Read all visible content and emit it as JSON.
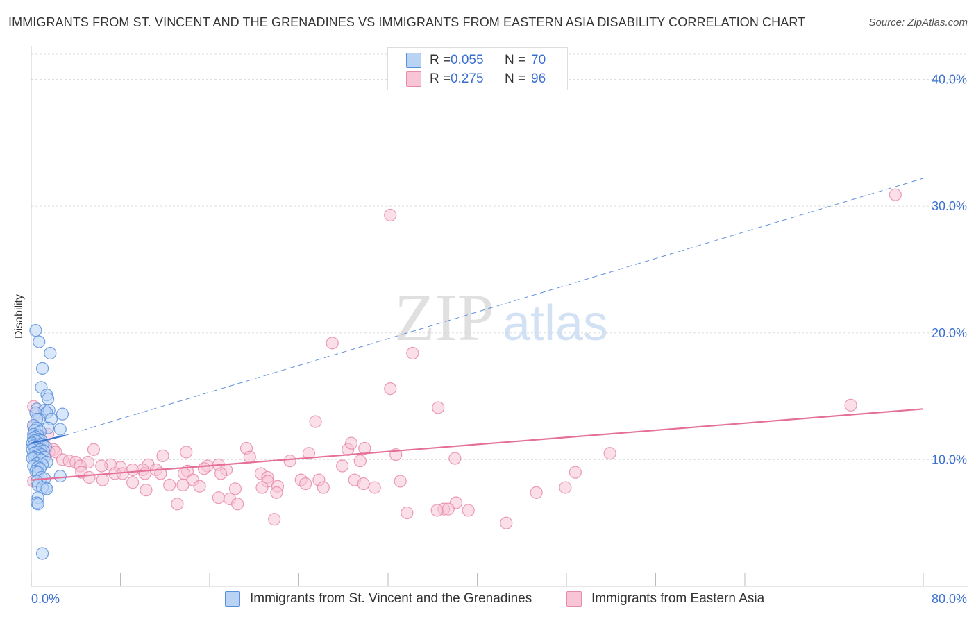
{
  "header": {
    "title": "IMMIGRANTS FROM ST. VINCENT AND THE GRENADINES VS IMMIGRANTS FROM EASTERN ASIA DISABILITY CORRELATION CHART",
    "source": "Source: ZipAtlas.com"
  },
  "watermark": {
    "zip": "ZIP",
    "atlas": "atlas"
  },
  "legend": {
    "rows": [
      {
        "r_label": "R =",
        "r_value": "0.055",
        "n_label": "N =",
        "n_value": "70"
      },
      {
        "r_label": "R =",
        "r_value": "0.275",
        "n_label": "N =",
        "n_value": "96"
      }
    ]
  },
  "colors": {
    "blue_fill": "#b9d3f5",
    "blue_stroke": "#5b8fd9",
    "blue_line": "#3a74d2",
    "pink_fill": "#f7c5d5",
    "pink_stroke": "#e88aaa",
    "pink_line": "#e4709a",
    "tick_label": "#3a6fd1",
    "grid": "#dddddd"
  },
  "chart_data": {
    "type": "scatter",
    "title": "IMMIGRANTS FROM ST. VINCENT AND THE GRENADINES VS IMMIGRANTS FROM EASTERN ASIA DISABILITY CORRELATION CHART",
    "xlabel": "",
    "ylabel": "Disability",
    "xlim": [
      0,
      80
    ],
    "ylim": [
      0,
      42
    ],
    "x_tick_labels": [
      {
        "value": 0,
        "label": "0.0%"
      },
      {
        "value": 80,
        "label": "80.0%"
      }
    ],
    "y_ticks": [
      {
        "value": 10,
        "label": "10.0%"
      },
      {
        "value": 20,
        "label": "20.0%"
      },
      {
        "value": 30,
        "label": "30.0%"
      },
      {
        "value": 40,
        "label": "40.0%"
      }
    ],
    "x_minor_ticks": [
      0,
      8,
      16,
      24,
      32,
      40,
      48,
      56,
      64,
      72,
      80
    ],
    "grid": true,
    "legend_position": "top-center",
    "series": [
      {
        "name": "Immigrants from St. Vincent and the Grenadines",
        "color": "blue",
        "R": 0.055,
        "N": 70,
        "trend_solid": {
          "x": [
            0,
            3.0
          ],
          "y": [
            11.3,
            11.9
          ]
        },
        "trend_dashed": {
          "x": [
            3.0,
            80
          ],
          "y": [
            11.9,
            32.2
          ]
        },
        "points": [
          [
            0.4,
            20.2
          ],
          [
            0.7,
            19.3
          ],
          [
            1.7,
            18.4
          ],
          [
            1.0,
            17.2
          ],
          [
            0.9,
            15.7
          ],
          [
            1.4,
            15.1
          ],
          [
            1.5,
            14.8
          ],
          [
            0.5,
            14.0
          ],
          [
            1.2,
            13.9
          ],
          [
            1.6,
            13.9
          ],
          [
            0.4,
            13.7
          ],
          [
            1.4,
            13.7
          ],
          [
            2.8,
            13.6
          ],
          [
            0.7,
            13.2
          ],
          [
            0.5,
            13.2
          ],
          [
            1.8,
            13.2
          ],
          [
            0.2,
            12.7
          ],
          [
            0.5,
            12.5
          ],
          [
            1.5,
            12.5
          ],
          [
            2.6,
            12.4
          ],
          [
            0.3,
            12.3
          ],
          [
            0.8,
            12.2
          ],
          [
            0.2,
            12.0
          ],
          [
            0.6,
            11.9
          ],
          [
            0.4,
            11.8
          ],
          [
            0.2,
            11.7
          ],
          [
            0.7,
            11.6
          ],
          [
            0.9,
            11.5
          ],
          [
            0.3,
            11.5
          ],
          [
            0.5,
            11.4
          ],
          [
            0.1,
            11.3
          ],
          [
            0.7,
            11.2
          ],
          [
            1.0,
            11.2
          ],
          [
            0.2,
            11.1
          ],
          [
            1.3,
            11.0
          ],
          [
            0.5,
            11.0
          ],
          [
            0.3,
            10.9
          ],
          [
            0.8,
            10.8
          ],
          [
            0.1,
            10.8
          ],
          [
            1.1,
            10.7
          ],
          [
            0.4,
            10.6
          ],
          [
            0.6,
            10.6
          ],
          [
            0.2,
            10.5
          ],
          [
            0.9,
            10.4
          ],
          [
            0.5,
            10.3
          ],
          [
            1.2,
            10.2
          ],
          [
            0.3,
            10.2
          ],
          [
            0.7,
            10.1
          ],
          [
            0.1,
            10.1
          ],
          [
            0.9,
            10.0
          ],
          [
            1.4,
            9.8
          ],
          [
            0.5,
            9.7
          ],
          [
            1.0,
            9.6
          ],
          [
            0.2,
            9.5
          ],
          [
            0.6,
            9.4
          ],
          [
            0.8,
            9.3
          ],
          [
            0.4,
            9.1
          ],
          [
            0.6,
            9.0
          ],
          [
            2.6,
            8.7
          ],
          [
            0.9,
            8.6
          ],
          [
            1.2,
            8.5
          ],
          [
            0.5,
            8.3
          ],
          [
            0.6,
            8.0
          ],
          [
            1.3,
            7.8
          ],
          [
            1.0,
            7.8
          ],
          [
            1.4,
            7.7
          ],
          [
            0.6,
            7.0
          ],
          [
            0.5,
            6.6
          ],
          [
            0.6,
            6.5
          ],
          [
            1.0,
            2.6
          ]
        ]
      },
      {
        "name": "Immigrants from Eastern Asia",
        "color": "pink",
        "R": 0.275,
        "N": 96,
        "trend_solid": {
          "x": [
            0,
            80
          ],
          "y": [
            8.4,
            14.0
          ]
        },
        "points": [
          [
            77.5,
            30.9
          ],
          [
            32.2,
            29.3
          ],
          [
            27.0,
            19.2
          ],
          [
            34.2,
            18.4
          ],
          [
            32.2,
            15.6
          ],
          [
            73.5,
            14.3
          ],
          [
            36.5,
            14.1
          ],
          [
            25.5,
            13.0
          ],
          [
            0.2,
            14.2
          ],
          [
            0.5,
            13.6
          ],
          [
            0.2,
            12.6
          ],
          [
            0.3,
            12.0
          ],
          [
            1.5,
            12.0
          ],
          [
            0.8,
            11.2
          ],
          [
            1.2,
            11.1
          ],
          [
            2.0,
            10.8
          ],
          [
            1.6,
            10.6
          ],
          [
            2.2,
            10.6
          ],
          [
            5.6,
            10.8
          ],
          [
            19.3,
            10.9
          ],
          [
            28.4,
            10.8
          ],
          [
            29.9,
            10.9
          ],
          [
            28.7,
            11.3
          ],
          [
            24.9,
            10.5
          ],
          [
            32.7,
            10.4
          ],
          [
            51.9,
            10.5
          ],
          [
            11.8,
            10.3
          ],
          [
            13.9,
            10.6
          ],
          [
            19.6,
            10.2
          ],
          [
            38.0,
            10.1
          ],
          [
            2.8,
            10.0
          ],
          [
            3.4,
            9.9
          ],
          [
            4.0,
            9.8
          ],
          [
            5.1,
            9.8
          ],
          [
            7.1,
            9.6
          ],
          [
            10.5,
            9.6
          ],
          [
            15.8,
            9.5
          ],
          [
            16.8,
            9.6
          ],
          [
            23.2,
            9.9
          ],
          [
            29.5,
            9.9
          ],
          [
            4.4,
            9.5
          ],
          [
            6.3,
            9.5
          ],
          [
            8.0,
            9.4
          ],
          [
            9.1,
            9.2
          ],
          [
            10.0,
            9.2
          ],
          [
            11.2,
            9.2
          ],
          [
            14.0,
            9.1
          ],
          [
            15.5,
            9.3
          ],
          [
            17.5,
            9.2
          ],
          [
            27.9,
            9.5
          ],
          [
            4.5,
            9.0
          ],
          [
            7.5,
            8.9
          ],
          [
            8.2,
            8.9
          ],
          [
            10.2,
            8.9
          ],
          [
            11.6,
            8.9
          ],
          [
            13.7,
            8.9
          ],
          [
            17.0,
            8.9
          ],
          [
            20.6,
            8.9
          ],
          [
            21.2,
            8.6
          ],
          [
            48.8,
            9.0
          ],
          [
            5.2,
            8.6
          ],
          [
            6.4,
            8.4
          ],
          [
            14.5,
            8.4
          ],
          [
            21.2,
            8.3
          ],
          [
            24.2,
            8.4
          ],
          [
            25.8,
            8.4
          ],
          [
            29.0,
            8.4
          ],
          [
            33.1,
            8.3
          ],
          [
            9.1,
            8.2
          ],
          [
            12.4,
            8.0
          ],
          [
            13.6,
            8.0
          ],
          [
            15.1,
            7.9
          ],
          [
            18.3,
            7.7
          ],
          [
            20.7,
            7.8
          ],
          [
            22.1,
            7.9
          ],
          [
            24.6,
            8.1
          ],
          [
            26.2,
            7.8
          ],
          [
            29.8,
            8.1
          ],
          [
            30.8,
            7.8
          ],
          [
            47.9,
            7.8
          ],
          [
            10.3,
            7.6
          ],
          [
            22.0,
            7.4
          ],
          [
            45.3,
            7.4
          ],
          [
            16.8,
            7.0
          ],
          [
            17.8,
            6.9
          ],
          [
            13.1,
            6.5
          ],
          [
            18.5,
            6.5
          ],
          [
            38.1,
            6.6
          ],
          [
            37.0,
            6.1
          ],
          [
            36.4,
            6.0
          ],
          [
            37.4,
            6.1
          ],
          [
            39.2,
            6.0
          ],
          [
            33.7,
            5.8
          ],
          [
            21.8,
            5.3
          ],
          [
            42.6,
            5.0
          ],
          [
            0.2,
            8.3
          ]
        ]
      }
    ]
  },
  "bottom_legend": {
    "items": [
      {
        "label": "Immigrants from St. Vincent and the Grenadines"
      },
      {
        "label": "Immigrants from Eastern Asia"
      }
    ]
  }
}
